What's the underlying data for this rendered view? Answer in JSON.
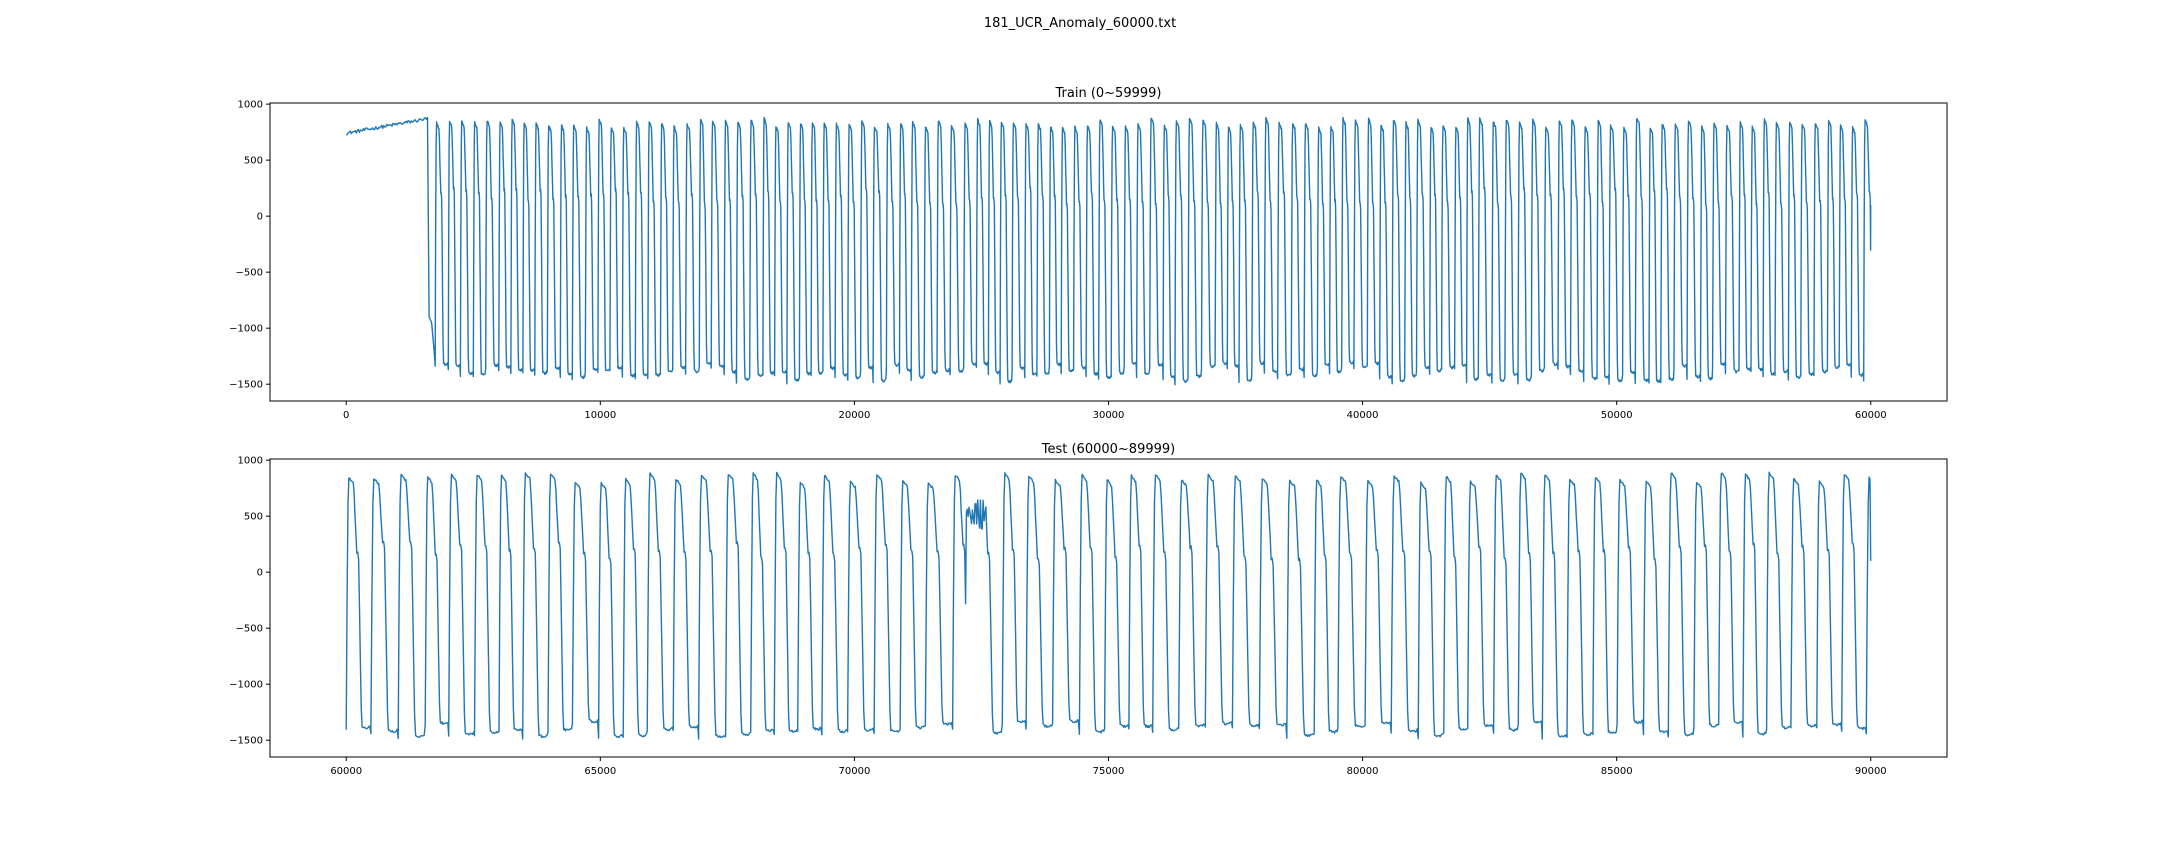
{
  "figure": {
    "suptitle": "181_UCR_Anomaly_60000.txt",
    "line_color": "#1f77b4"
  },
  "chart_data": [
    {
      "type": "line",
      "title": "Train (0~59999)",
      "xlabel": "",
      "ylabel": "",
      "xlim": [
        -3000,
        63000
      ],
      "ylim": [
        -1650,
        1010
      ],
      "xticks": [
        0,
        10000,
        20000,
        30000,
        40000,
        50000,
        60000
      ],
      "xtick_labels": [
        "0",
        "10000",
        "20000",
        "30000",
        "40000",
        "50000",
        "60000"
      ],
      "yticks": [
        1000,
        500,
        0,
        -500,
        -1000,
        -1500
      ],
      "ytick_labels": [
        "1000",
        "500",
        "0",
        "−500",
        "−1000",
        "−1500"
      ],
      "grid": false,
      "series": [
        {
          "x_start": 0,
          "x_end": 59999,
          "flat_segment": {
            "x_end": 3200,
            "y_start": 740,
            "y_end": 870
          },
          "cycle_period": 500,
          "peak_range": [
            790,
            880
          ],
          "trough_range": [
            -1500,
            -1330
          ],
          "dicrotic_notch": [
            50,
            200
          ]
        }
      ]
    },
    {
      "type": "line",
      "title": "Test (60000~89999)",
      "xlabel": "",
      "ylabel": "",
      "xlim": [
        58500,
        91500
      ],
      "ylim": [
        -1650,
        1010
      ],
      "xticks": [
        60000,
        65000,
        70000,
        75000,
        80000,
        85000,
        90000
      ],
      "xtick_labels": [
        "60000",
        "65000",
        "70000",
        "75000",
        "80000",
        "85000",
        "90000"
      ],
      "yticks": [
        1000,
        500,
        0,
        -500,
        -1000,
        -1500
      ],
      "ytick_labels": [
        "1000",
        "500",
        "0",
        "−500",
        "−1000",
        "−1500"
      ],
      "grid": false,
      "series": [
        {
          "x_start": 60000,
          "x_end": 89999,
          "cycle_period": 500,
          "peak_range": [
            800,
            890
          ],
          "trough_range": [
            -1490,
            -1350
          ],
          "dicrotic_notch": [
            50,
            220
          ],
          "anomaly_region": [
            72200,
            72600
          ]
        }
      ]
    }
  ]
}
